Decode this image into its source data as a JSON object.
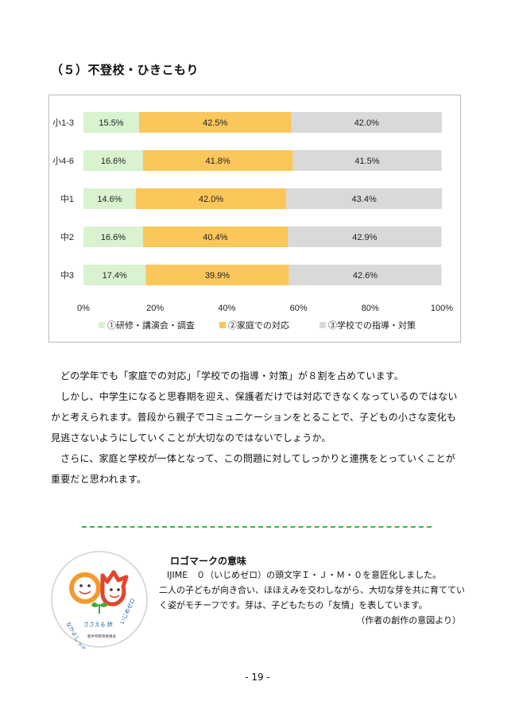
{
  "section_title": "（５）不登校・ひきこもり",
  "chart_data": {
    "type": "bar",
    "orientation": "horizontal",
    "stacked": "percent",
    "categories": [
      "小1-3",
      "小4-6",
      "中1",
      "中2",
      "中3"
    ],
    "series": [
      {
        "name": "①研修・講演会・調査",
        "values": [
          15.5,
          16.6,
          14.6,
          16.6,
          17.4
        ],
        "labels": [
          "15.5%",
          "16.6%",
          "14.6%",
          "16.6%",
          "17.4%"
        ],
        "color": "#d9f2d0"
      },
      {
        "name": "②家庭での対応",
        "values": [
          42.5,
          41.8,
          42.0,
          40.4,
          39.9
        ],
        "labels": [
          "42.5%",
          "41.8%",
          "42.0%",
          "40.4%",
          "39.9%"
        ],
        "color": "#fbc65a"
      },
      {
        "name": "③学校での指導・対策",
        "values": [
          42.0,
          41.5,
          43.4,
          42.9,
          42.6
        ],
        "labels": [
          "42.0%",
          "41.5%",
          "43.4%",
          "42.9%",
          "42.6%"
        ],
        "color": "#d9d9d9"
      }
    ],
    "xlim": [
      0,
      100
    ],
    "xticks": [
      "0%",
      "20%",
      "40%",
      "60%",
      "80%",
      "100%"
    ],
    "legend_position": "bottom",
    "grid": false
  },
  "paragraphs": [
    "どの学年でも「家庭での対応」「学校での指導・対策」が８割を占めています。",
    "しかし、中学生になると思春期を迎え、保護者だけでは対応できなくなっているのではないかと考えられます。普段から親子でコミュニケーションをとることで、子どもの小さな変化も見逃さないようにしていくことが大切なのではないでしょうか。",
    "さらに、家庭と学校が一体となって、この問題に対してしっかりと連携をとっていくことが重要だと思われます。"
  ],
  "logo": {
    "emblem_text_left": "なかよしっ子",
    "emblem_text_center": "ささえる 絆",
    "emblem_text_right": "いじめゼロ",
    "emblem_text_bottom": "栃木県教育委員会",
    "title": "ロゴマークの意味",
    "line1": "IJIME　０（いじめゼロ）の頭文字Ｉ・Ｊ・Ｍ・０を意匠化しました。",
    "line2": "二人の子どもが向き合い、ほほえみを交わしながら、大切な芽を共に育ててい",
    "line3": "く姿がモチーフです。芽は、子どもたちの「友情」を表しています。",
    "source": "（作者の創作の意図より）"
  },
  "page_number": "- 19 -"
}
